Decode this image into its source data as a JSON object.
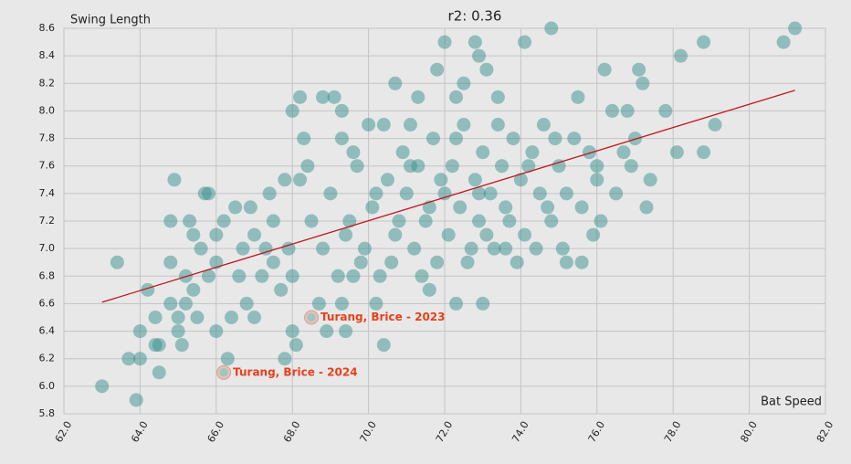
{
  "chart_data": {
    "type": "scatter",
    "title": "r2: 0.36",
    "x_label": "Bat Speed",
    "y_label": "Swing Length",
    "x": [
      63.0,
      63.9,
      63.4,
      63.7,
      64.0,
      64.0,
      64.5,
      64.4,
      64.5,
      64.2,
      64.4,
      64.8,
      64.8,
      64.8,
      64.9,
      65.0,
      65.0,
      65.1,
      65.2,
      65.2,
      65.3,
      65.4,
      65.4,
      65.5,
      65.6,
      65.7,
      65.8,
      65.8,
      66.0,
      66.0,
      66.0,
      66.3,
      66.2,
      66.4,
      66.5,
      66.6,
      66.7,
      66.8,
      67.0,
      67.0,
      67.4,
      67.5,
      67.8,
      67.7,
      67.9,
      68.0,
      68.1,
      68.2,
      68.3,
      68.0,
      68.2,
      68.8,
      69.1,
      69.3,
      69.4,
      68.9,
      69.3,
      69.6,
      69.8,
      70.2,
      70.4,
      70.4,
      70.7,
      71.1,
      71.3,
      71.6,
      71.8,
      72.0,
      72.3,
      72.3,
      72.5,
      72.8,
      72.9,
      73.1,
      73.4,
      74.1,
      74.8,
      74.4,
      75.2,
      75.6,
      76.1,
      76.0,
      76.2,
      76.4,
      76.8,
      77.1,
      77.2,
      77.3,
      77.4,
      77.8,
      78.1,
      78.2,
      78.8,
      78.8,
      79.1,
      80.9,
      81.2,
      76.9,
      76.7,
      77.0,
      75.5,
      73.0,
      73.6,
      68.5,
      68.8,
      69.0,
      69.2,
      69.5,
      69.7,
      69.9,
      70.1,
      70.3,
      70.5,
      70.7,
      70.9,
      71.0,
      71.2,
      71.3,
      71.5,
      71.7,
      71.8,
      72.0,
      72.1,
      72.2,
      72.4,
      72.5,
      72.6,
      72.8,
      72.9,
      73.0,
      73.2,
      73.3,
      73.5,
      73.6,
      73.8,
      74.0,
      74.1,
      74.3,
      74.5,
      74.6,
      74.8,
      75.0,
      75.2,
      75.4,
      75.6,
      75.8,
      76.0,
      67.5,
      67.8,
      67.2,
      68.0,
      68.4,
      69.3,
      70.0,
      70.6,
      71.4,
      72.7,
      73.9,
      74.7,
      75.9,
      66.9,
      67.3,
      68.7,
      69.6,
      70.8,
      71.9,
      72.3,
      73.4,
      74.2,
      75.1,
      76.5,
      70.2,
      71.1,
      72.9,
      73.7,
      69.4,
      71.6,
      73.1,
      74.9
    ],
    "series": [
      {
        "color": "#3a8f8f",
        "values": [
          6.0,
          5.9,
          6.9,
          6.2,
          6.2,
          6.4,
          6.1,
          6.3,
          6.3,
          6.7,
          6.5,
          6.6,
          6.9,
          7.2,
          7.5,
          6.5,
          6.4,
          6.3,
          6.8,
          6.6,
          7.2,
          7.1,
          6.7,
          6.5,
          7.0,
          7.4,
          7.4,
          6.8,
          7.1,
          6.9,
          6.4,
          6.2,
          7.2,
          6.5,
          7.3,
          6.8,
          7.0,
          6.6,
          7.1,
          6.5,
          7.4,
          6.9,
          6.2,
          6.7,
          7.0,
          6.4,
          6.3,
          7.5,
          7.8,
          8.0,
          8.1,
          8.1,
          8.1,
          8.0,
          6.4,
          6.4,
          6.6,
          7.7,
          6.9,
          6.6,
          6.3,
          7.9,
          8.2,
          7.9,
          8.1,
          6.7,
          8.3,
          8.5,
          6.6,
          8.1,
          8.2,
          8.5,
          8.4,
          8.3,
          8.1,
          8.5,
          8.6,
          7.0,
          6.9,
          6.9,
          7.2,
          7.5,
          8.3,
          8.0,
          8.0,
          8.3,
          8.2,
          7.3,
          7.5,
          8.0,
          7.7,
          8.4,
          7.7,
          8.5,
          7.9,
          8.5,
          8.6,
          7.6,
          7.7,
          7.8,
          8.1,
          6.6,
          7.0,
          7.2,
          7.0,
          7.4,
          6.8,
          7.2,
          7.6,
          7.0,
          7.3,
          6.8,
          7.5,
          7.1,
          7.7,
          7.4,
          7.0,
          7.6,
          7.2,
          7.8,
          6.9,
          7.4,
          7.1,
          7.6,
          7.3,
          7.9,
          6.9,
          7.5,
          7.2,
          7.7,
          7.4,
          7.0,
          7.6,
          7.3,
          7.8,
          7.5,
          7.1,
          7.7,
          7.4,
          7.9,
          7.2,
          7.6,
          7.4,
          7.8,
          7.3,
          7.7,
          7.6,
          7.2,
          7.5,
          6.8,
          6.8,
          7.6,
          7.8,
          7.9,
          6.9,
          6.8,
          7.0,
          6.9,
          7.3,
          7.1,
          7.3,
          7.0,
          6.6,
          6.8,
          7.2,
          7.5,
          7.8,
          7.9,
          7.6,
          7.0,
          7.4,
          7.4,
          7.6,
          7.4,
          7.2,
          7.1,
          7.3,
          7.1,
          7.8
        ]
      }
    ],
    "trend_line": {
      "color": "#c0161c",
      "x": [
        63.0,
        81.2
      ],
      "y": [
        6.61,
        8.15
      ]
    },
    "annotations": [
      {
        "text": "Turang, Brice - 2023",
        "x": 68.5,
        "y": 6.5,
        "color": "#e8401c"
      },
      {
        "text": "Turang, Brice - 2024",
        "x": 66.2,
        "y": 6.1,
        "color": "#e8401c"
      }
    ],
    "xlim": [
      62,
      82
    ],
    "ylim": [
      5.8,
      8.6
    ],
    "xticks": [
      {
        "value": 62,
        "label": "62.0"
      },
      {
        "value": 64,
        "label": "64.0"
      },
      {
        "value": 66,
        "label": "66.0"
      },
      {
        "value": 68,
        "label": "68.0"
      },
      {
        "value": 70,
        "label": "70.0"
      },
      {
        "value": 72,
        "label": "72.0"
      },
      {
        "value": 74,
        "label": "74.0"
      },
      {
        "value": 76,
        "label": "76.0"
      },
      {
        "value": 78,
        "label": "78.0"
      },
      {
        "value": 80,
        "label": "80.0"
      },
      {
        "value": 82,
        "label": "82.0"
      }
    ],
    "yticks": [
      5.8,
      {
        "value": 6,
        "label": "6.0"
      },
      6.2,
      6.4,
      6.6,
      6.8,
      {
        "value": 7,
        "label": "7.0"
      },
      7.2,
      7.4,
      7.6,
      7.8,
      {
        "value": 8,
        "label": "8.0"
      },
      8.2,
      8.4,
      8.6
    ],
    "grid": true
  }
}
